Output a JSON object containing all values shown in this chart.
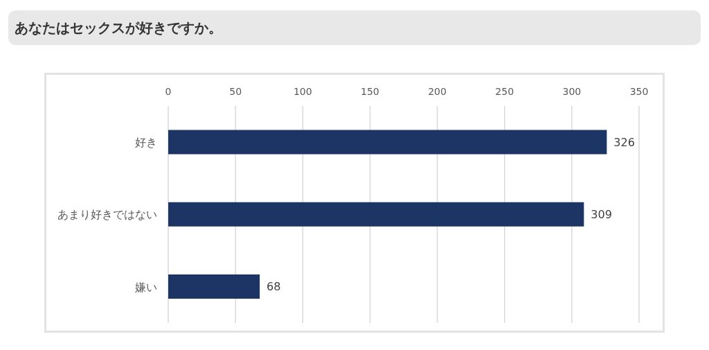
{
  "chart_data": {
    "type": "bar",
    "title": "あなたはセックスが好きですか。",
    "orientation": "horizontal",
    "categories": [
      "好き",
      "あまり好きではない",
      "嫌い"
    ],
    "values": [
      326,
      309,
      68
    ],
    "color": "#1c3564",
    "xlim": [
      0,
      350
    ],
    "xticks": [
      0,
      50,
      100,
      150,
      200,
      250,
      300,
      350
    ],
    "grid": "x",
    "data_labels": true
  }
}
